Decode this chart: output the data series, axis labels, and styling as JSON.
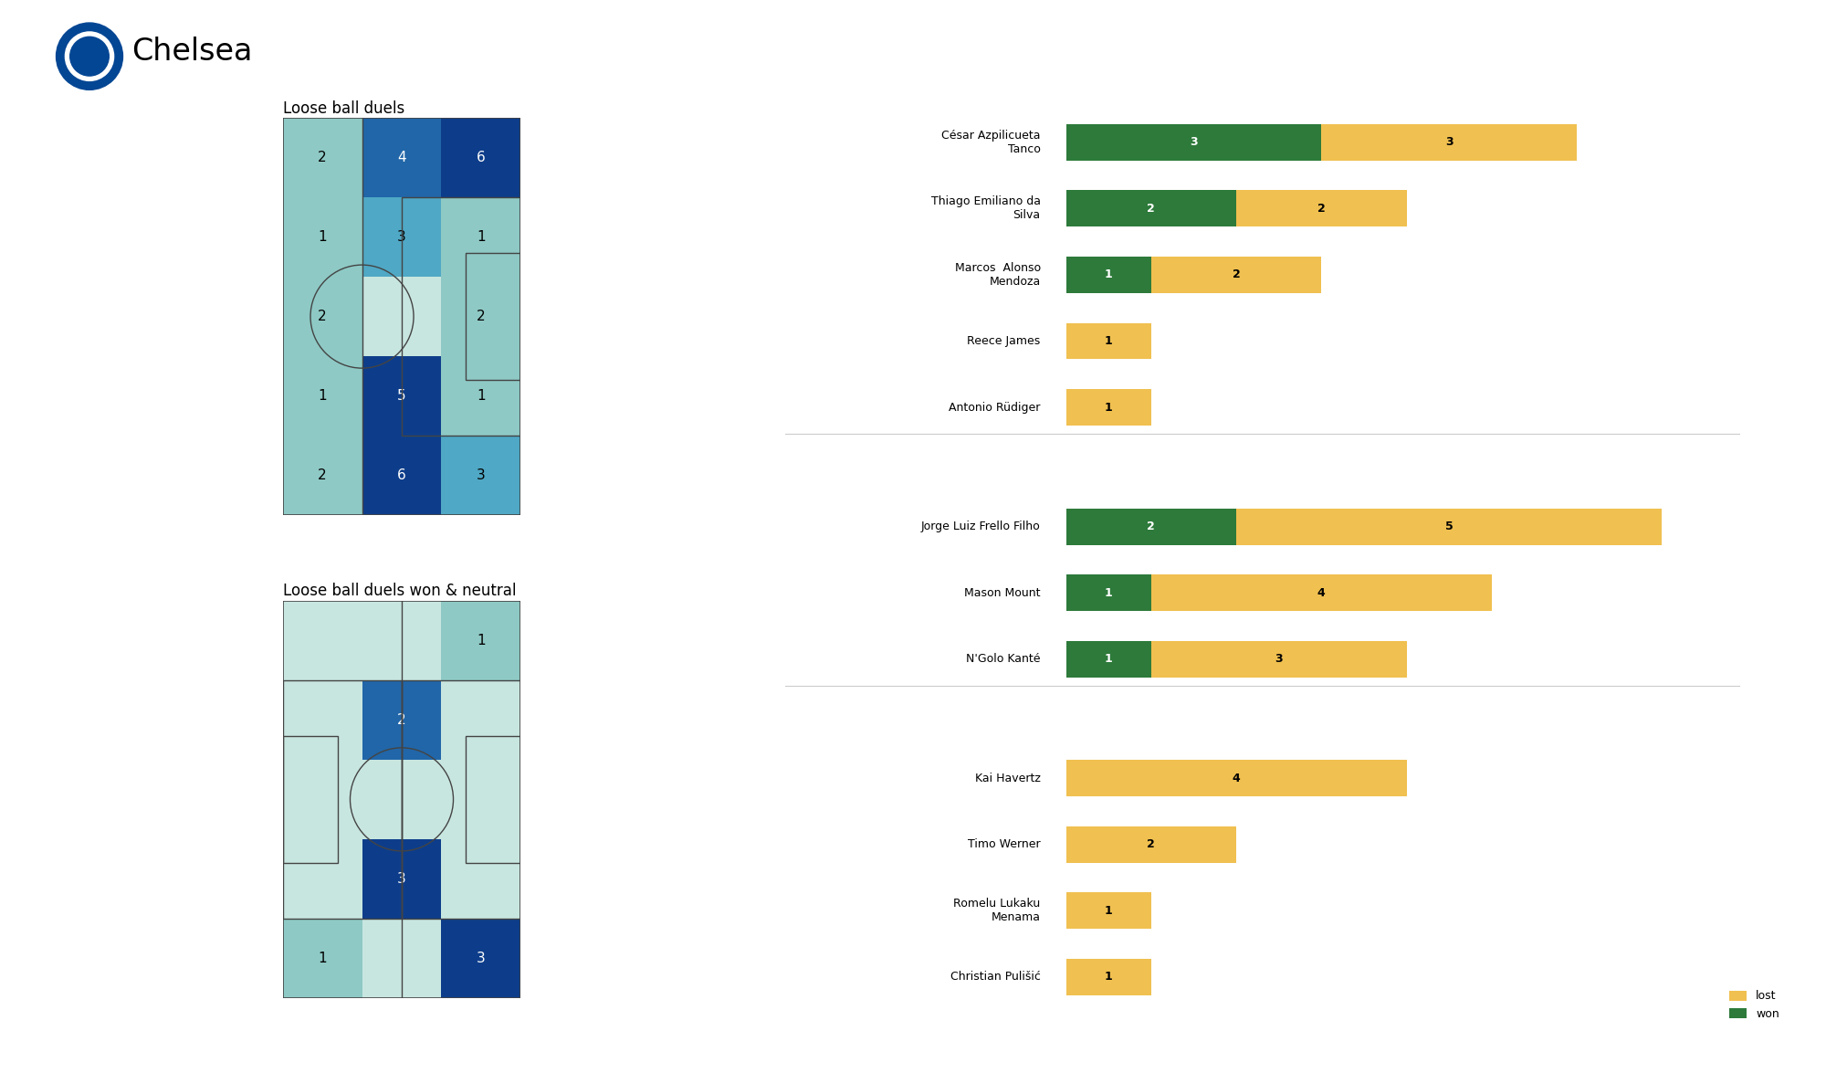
{
  "title": "Chelsea",
  "heatmap1_title": "Loose ball duels",
  "heatmap2_title": "Loose ball duels won & neutral",
  "heatmap1_data": [
    [
      2,
      4,
      6
    ],
    [
      1,
      3,
      1
    ],
    [
      2,
      0,
      2
    ],
    [
      1,
      5,
      1
    ],
    [
      2,
      6,
      3
    ]
  ],
  "heatmap2_data": [
    [
      0,
      0,
      1
    ],
    [
      0,
      2,
      0
    ],
    [
      0,
      0,
      0
    ],
    [
      0,
      3,
      0
    ],
    [
      1,
      0,
      3
    ]
  ],
  "players": [
    {
      "name": "César Azpilicueta\nTanco",
      "won": 3,
      "lost": 3
    },
    {
      "name": "Thiago Emiliano da\nSilva",
      "won": 2,
      "lost": 2
    },
    {
      "name": "Marcos  Alonso\nMendoza",
      "won": 1,
      "lost": 2
    },
    {
      "name": "Reece James",
      "won": 0,
      "lost": 1
    },
    {
      "name": "Antonio Rüdiger",
      "won": 0,
      "lost": 1
    },
    {
      "name": "Jorge Luiz Frello Filho",
      "won": 2,
      "lost": 5
    },
    {
      "name": "Mason Mount",
      "won": 1,
      "lost": 4
    },
    {
      "name": "N'Golo Kanté",
      "won": 1,
      "lost": 3
    },
    {
      "name": "Kai Havertz",
      "won": 0,
      "lost": 4
    },
    {
      "name": "Timo Werner",
      "won": 0,
      "lost": 2
    },
    {
      "name": "Romelu Lukaku\nMenama",
      "won": 0,
      "lost": 1
    },
    {
      "name": "Christian Pulišić",
      "won": 0,
      "lost": 1
    }
  ],
  "group_breaks": [
    5,
    8
  ],
  "color_won": "#2d7a3a",
  "color_lost": "#f0c050",
  "color_divider": "#cccccc",
  "bg_color": "#ffffff",
  "heatmap_colors": [
    "#c8e6e0",
    "#8ec9c5",
    "#4fa8c5",
    "#2166a8",
    "#0d3d8a"
  ],
  "chelsea_blue": "#034694"
}
